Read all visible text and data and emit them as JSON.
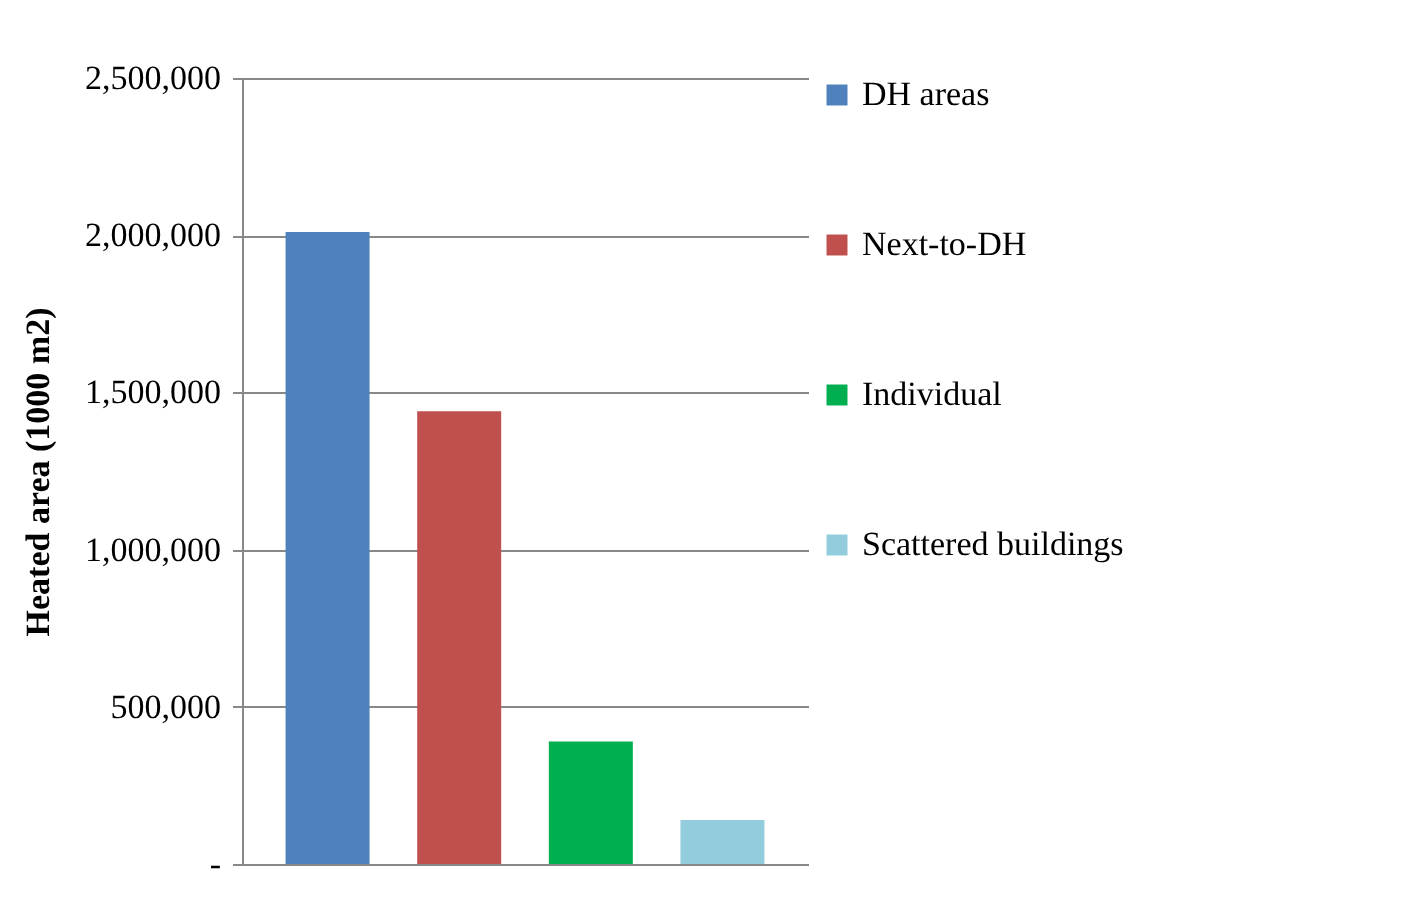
{
  "chart_data": {
    "type": "bar",
    "ylabel": "Heated area (1000 m2)",
    "categories": [
      null
    ],
    "series": [
      {
        "name": "DH areas",
        "color": "#4f81bd",
        "values": [
          2010000
        ]
      },
      {
        "name": "Next-to-DH",
        "color": "#c0504d",
        "values": [
          1440000
        ]
      },
      {
        "name": "Individual",
        "color": "#00b050",
        "values": [
          390000
        ]
      },
      {
        "name": "Scattered buildings",
        "color": "#93cddd",
        "values": [
          140000
        ]
      }
    ],
    "ylim": [
      0,
      2500000
    ],
    "yticks": [
      {
        "value": 0,
        "label": "-"
      },
      {
        "value": 500000,
        "label": "500,000"
      },
      {
        "value": 1000000,
        "label": "1,000,000"
      },
      {
        "value": 1500000,
        "label": "1,500,000"
      },
      {
        "value": 2000000,
        "label": "2,000,000"
      },
      {
        "value": 2500000,
        "label": "2,500,000"
      }
    ],
    "grid": "y",
    "legend": "right",
    "tick_labels": "y"
  }
}
